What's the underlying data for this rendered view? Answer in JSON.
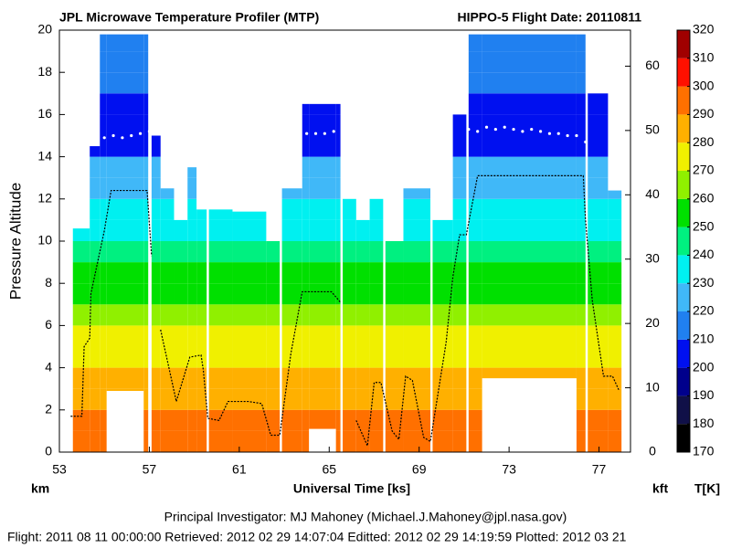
{
  "chart_data": {
    "type": "curtain",
    "title": "JPL Microwave Temperature Profiler (MTP)",
    "subtitle": "HIPPO-5  Flight Date: 20110811",
    "xlabel": "Universal Time [ks]",
    "ylabel": "Pressure Altitude",
    "y_unit": "km",
    "y2_unit": "kft",
    "colorbar_label": "T[K]",
    "xlim": [
      53,
      78.4
    ],
    "xticks": [
      53,
      57,
      61,
      65,
      69,
      73,
      77
    ],
    "ylim": [
      0,
      20
    ],
    "yticks": [
      0,
      2,
      4,
      6,
      8,
      10,
      12,
      14,
      16,
      18,
      20
    ],
    "y2lim": [
      0,
      65.6
    ],
    "y2ticks": [
      0,
      10,
      20,
      30,
      40,
      50,
      60
    ],
    "colorbar": {
      "lim": [
        170,
        320
      ],
      "ticks": [
        170,
        180,
        190,
        200,
        210,
        220,
        230,
        240,
        250,
        260,
        270,
        280,
        290,
        300,
        310,
        320
      ],
      "colors": [
        "#000000",
        "#101048",
        "#00008c",
        "#0010f0",
        "#2080f0",
        "#40b8f8",
        "#00f0f0",
        "#00f080",
        "#00e000",
        "#90f000",
        "#f0f000",
        "#ffb000",
        "#ff7000",
        "#ff1000",
        "#a00000"
      ]
    },
    "profile": {
      "altitude": [
        0,
        1,
        2,
        3,
        4,
        5,
        6,
        7,
        8,
        9,
        10,
        11,
        12,
        13,
        14,
        15,
        16,
        17,
        18,
        19,
        20
      ],
      "temperature": [
        298,
        293,
        288,
        283,
        277,
        272,
        265,
        258,
        251,
        245,
        238,
        232,
        226,
        220,
        208,
        203,
        205,
        210,
        212,
        213,
        214
      ]
    },
    "columns": [
      {
        "x": [
          53.6,
          54.35
        ],
        "top": 10.6,
        "bottom": 0
      },
      {
        "x": [
          54.35,
          54.8
        ],
        "top": 14.5,
        "bottom": 0
      },
      {
        "x": [
          54.8,
          55.1
        ],
        "top": 19.8,
        "bottom": 0
      },
      {
        "x": [
          55.1,
          56.75
        ],
        "top": 19.8,
        "bottom": 2.9
      },
      {
        "x": [
          56.75,
          56.95
        ],
        "top": 19.8,
        "bottom": 0
      },
      {
        "x": [
          57.1,
          57.5
        ],
        "top": 15,
        "bottom": 0
      },
      {
        "x": [
          57.5,
          58.1
        ],
        "top": 12.5,
        "bottom": 0
      },
      {
        "x": [
          58.1,
          58.7
        ],
        "top": 11,
        "bottom": 0
      },
      {
        "x": [
          58.7,
          59.1
        ],
        "top": 13.5,
        "bottom": 0
      },
      {
        "x": [
          59.1,
          59.55
        ],
        "top": 11.5,
        "bottom": 0
      },
      {
        "x": [
          59.65,
          60.7
        ],
        "top": 11.5,
        "bottom": 0
      },
      {
        "x": [
          60.7,
          62.2
        ],
        "top": 11.4,
        "bottom": 0
      },
      {
        "x": [
          62.2,
          62.8
        ],
        "top": 10,
        "bottom": 0
      },
      {
        "x": [
          62.9,
          63.8
        ],
        "top": 12.5,
        "bottom": 0
      },
      {
        "x": [
          63.8,
          64.1
        ],
        "top": 16.5,
        "bottom": 0
      },
      {
        "x": [
          64.1,
          65.3
        ],
        "top": 16.5,
        "bottom": 1.1
      },
      {
        "x": [
          65.3,
          65.5
        ],
        "top": 16.5,
        "bottom": 0
      },
      {
        "x": [
          65.6,
          66.2
        ],
        "top": 12,
        "bottom": 0
      },
      {
        "x": [
          66.2,
          66.8
        ],
        "top": 11,
        "bottom": 0
      },
      {
        "x": [
          66.8,
          67.4
        ],
        "top": 12,
        "bottom": 0
      },
      {
        "x": [
          67.5,
          68.3
        ],
        "top": 10,
        "bottom": 0
      },
      {
        "x": [
          68.3,
          69.5
        ],
        "top": 12.5,
        "bottom": 0
      },
      {
        "x": [
          69.6,
          70.5
        ],
        "top": 11,
        "bottom": 0
      },
      {
        "x": [
          70.5,
          71.1
        ],
        "top": 16,
        "bottom": 0
      },
      {
        "x": [
          71.2,
          71.8
        ],
        "top": 19.8,
        "bottom": 0
      },
      {
        "x": [
          71.8,
          76.0
        ],
        "top": 19.8,
        "bottom": 3.5
      },
      {
        "x": [
          76.0,
          76.4
        ],
        "top": 19.8,
        "bottom": 0
      },
      {
        "x": [
          76.5,
          77.4
        ],
        "top": 17,
        "bottom": 0
      },
      {
        "x": [
          77.4,
          78.0
        ],
        "top": 12.4,
        "bottom": 0
      }
    ],
    "flight": {
      "color": "#000000",
      "x": [
        53.5,
        54.0,
        54.1,
        54.35,
        54.4,
        55.0,
        55.3,
        56.9,
        57.1,
        null,
        57.5,
        58.2,
        58.8,
        59.3,
        59.4,
        59.6,
        60.1,
        60.5,
        61.4,
        62.0,
        62.4,
        62.8,
        63.3,
        63.8,
        65.1,
        65.5,
        null,
        66.2,
        66.7,
        67.0,
        67.3,
        67.8,
        68.1,
        68.4,
        68.7,
        69.2,
        69.5,
        70.2,
        70.5,
        70.8,
        71.1,
        71.6,
        76.3,
        76.4,
        76.7,
        77.2,
        77.6,
        77.9
      ],
      "y": [
        1.7,
        1.7,
        5.0,
        5.4,
        7.5,
        10.5,
        12.4,
        12.4,
        9.3,
        null,
        5.8,
        2.4,
        4.5,
        4.6,
        3.9,
        1.6,
        1.5,
        2.4,
        2.4,
        2.3,
        0.8,
        0.8,
        4.7,
        7.6,
        7.6,
        7.1,
        null,
        1.5,
        0.3,
        3.3,
        3.3,
        1.0,
        0.6,
        3.6,
        3.4,
        0.7,
        0.5,
        5.2,
        8.3,
        10.3,
        10.3,
        13.1,
        13.1,
        11.0,
        7.2,
        3.6,
        3.6,
        2.9
      ]
    },
    "tropopause": {
      "color": "#ffffff",
      "x": [
        54.6,
        55.0,
        55.4,
        55.8,
        56.2,
        56.6,
        57.0,
        64.0,
        64.4,
        64.8,
        65.2,
        71.2,
        71.6,
        72.0,
        72.4,
        72.8,
        73.2,
        73.6,
        74.0,
        74.4,
        74.8,
        75.2,
        75.6,
        76.0,
        76.4
      ],
      "y": [
        14.8,
        14.9,
        15.0,
        14.9,
        15.0,
        15.1,
        15.2,
        15.1,
        15.1,
        15.1,
        15.2,
        15.3,
        15.2,
        15.4,
        15.3,
        15.4,
        15.3,
        15.2,
        15.3,
        15.2,
        15.1,
        15.1,
        15.0,
        15.0,
        14.7
      ]
    },
    "footer": [
      "Principal Investigator: MJ Mahoney (Michael.J.Mahoney@jpl.nasa.gov)",
      "Flight: 2011 08 11 00:00:00   Retrieved: 2012 02 29 14:07:04   Editted: 2012 02 29 14:19:59   Plotted: 2012 03 21"
    ]
  }
}
